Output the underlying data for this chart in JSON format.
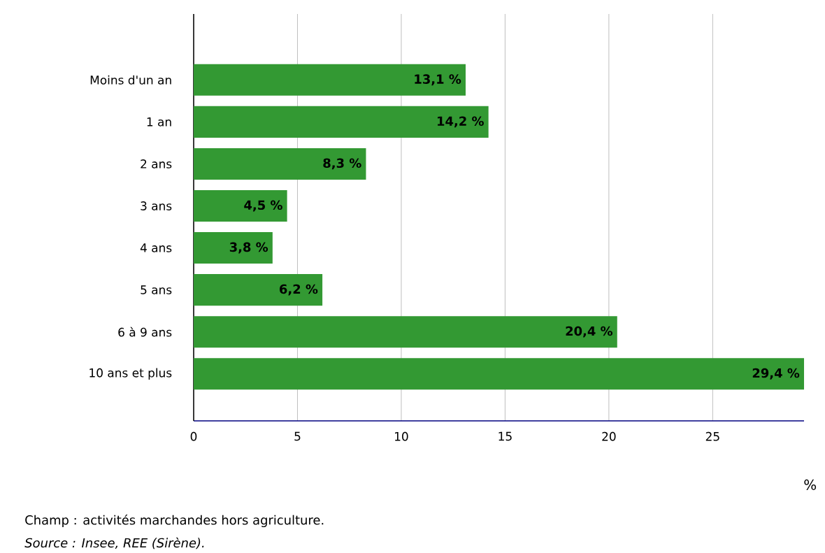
{
  "chart_data": {
    "type": "bar",
    "orientation": "horizontal",
    "categories": [
      "Moins d'un an",
      "1 an",
      "2 ans",
      "3 ans",
      "4 ans",
      "5 ans",
      "6 à 9 ans",
      "10 ans et plus"
    ],
    "values": [
      13.1,
      14.2,
      8.3,
      4.5,
      3.8,
      6.2,
      20.4,
      29.4
    ],
    "value_labels": [
      "13,1 %",
      "14,2 %",
      "8,3 %",
      "4,5 %",
      "3,8 %",
      "6,2 %",
      "20,4 %",
      "29,4 %"
    ],
    "color": "#339933",
    "xlim": [
      0,
      29.4
    ],
    "xticks": [
      0,
      5,
      10,
      15,
      20,
      25
    ],
    "xlabel": "%",
    "grid": "x",
    "annotations": [
      "Champ : activités marchandes hors agriculture.",
      "Source : Insee, REE (Sirène)."
    ]
  }
}
